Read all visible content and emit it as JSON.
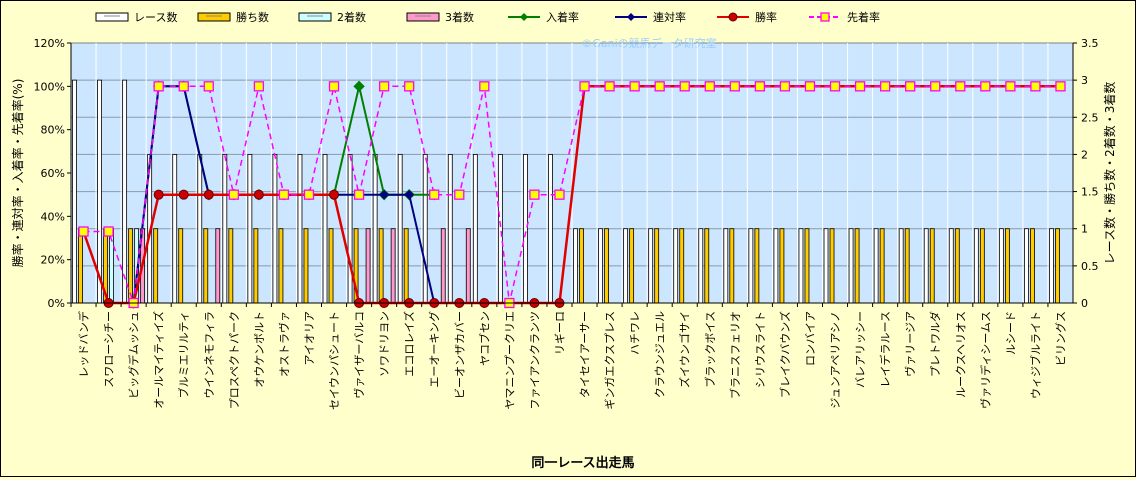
{
  "chart_data": {
    "type": "bar",
    "watermark": "©Ganiの競馬データ研究室",
    "xlabel": "同一レース出走馬",
    "ylabel_left": "勝率・連対率・入着率・先着率(%)",
    "ylabel_right": "レース数・勝ち数・2着数・3着数",
    "ylim_left": [
      0,
      120
    ],
    "ylim_right": [
      0,
      3.5
    ],
    "yticks_left": [
      "0%",
      "20%",
      "40%",
      "60%",
      "80%",
      "100%",
      "120%"
    ],
    "yticks_right": [
      "0",
      "0.5",
      "1",
      "1.5",
      "2",
      "2.5",
      "3",
      "3.5"
    ],
    "grid": true,
    "legend_position": "top",
    "categories": [
      "レッドバンデ",
      "スワローシチー",
      "ビッグデムッシュ",
      "オールマイティイズ",
      "ブルミエリルティ",
      "ウインネモフィラ",
      "プロスペクトパーク",
      "オウケンボルト",
      "オストラヴァ",
      "アイオリア",
      "セイウンパシュート",
      "ヴァイザーバルコ",
      "ソワドリヨン",
      "エコロレイズ",
      "エーオーキング",
      "ビーオンザカバー",
      "ヤコブセン",
      "ヤマニンプークリエ",
      "ファイアンクランツ",
      "リギーロ",
      "タイセイアーサー",
      "ギンガエクスプレス",
      "ハチワレ",
      "クラウンジュエル",
      "ズイウンゴサイ",
      "ブラックボイス",
      "ブラニスフェリオ",
      "シリウスライト",
      "ブレイクバウンズ",
      "ロンバイア",
      "ジュンアペリアシノ",
      "バレアリッシー",
      "レイデラルース",
      "ヴァリージア",
      "プレトワルダ",
      "ルークスヘリオス",
      "ヴァリディシームス",
      "ルシード",
      "ウィジブルライト",
      "ビリングス"
    ],
    "series": [
      {
        "name": "レース数",
        "axis": "right",
        "kind": "bar",
        "color": "#ffffff",
        "values": [
          3,
          3,
          3,
          2,
          2,
          2,
          2,
          2,
          2,
          2,
          2,
          2,
          2,
          2,
          2,
          2,
          2,
          2,
          2,
          2,
          1,
          1,
          1,
          1,
          1,
          1,
          1,
          1,
          1,
          1,
          1,
          1,
          1,
          1,
          1,
          1,
          1,
          1,
          1,
          1
        ]
      },
      {
        "name": "勝ち数",
        "axis": "right",
        "kind": "bar",
        "color": "#ffcc00",
        "values": [
          1,
          1,
          1,
          1,
          1,
          1,
          1,
          1,
          1,
          1,
          1,
          1,
          1,
          1,
          0,
          0,
          0,
          0,
          0,
          0,
          1,
          1,
          1,
          1,
          1,
          1,
          1,
          1,
          1,
          1,
          1,
          1,
          1,
          1,
          1,
          1,
          1,
          1,
          1,
          1
        ]
      },
      {
        "name": "2着数",
        "axis": "right",
        "kind": "bar",
        "color": "#ccffff",
        "values": [
          0,
          1,
          1,
          0,
          0,
          0,
          0,
          0,
          0,
          0,
          0,
          0,
          0,
          0,
          0,
          0,
          0,
          0,
          0,
          0,
          0,
          0,
          0,
          0,
          0,
          0,
          0,
          0,
          0,
          0,
          0,
          0,
          0,
          0,
          0,
          0,
          0,
          0,
          0,
          0
        ]
      },
      {
        "name": "3着数",
        "axis": "right",
        "kind": "bar",
        "color": "#ff99cc",
        "values": [
          0,
          0,
          1,
          0,
          0,
          1,
          0,
          0,
          0,
          0,
          0,
          1,
          1,
          0,
          1,
          1,
          0,
          0,
          0,
          0,
          0,
          0,
          0,
          0,
          0,
          0,
          0,
          0,
          0,
          0,
          0,
          0,
          0,
          0,
          0,
          0,
          0,
          0,
          0,
          0
        ]
      },
      {
        "name": "入着率",
        "axis": "left",
        "kind": "line",
        "color": "#008000",
        "values": [
          null,
          null,
          0,
          100,
          100,
          50,
          50,
          50,
          50,
          50,
          50,
          100,
          50,
          50,
          50,
          null,
          null,
          null,
          null,
          null,
          null,
          null,
          null,
          null,
          null,
          null,
          null,
          null,
          null,
          null,
          null,
          null,
          null,
          null,
          null,
          null,
          null,
          null,
          null,
          null
        ]
      },
      {
        "name": "連対率",
        "axis": "left",
        "kind": "line",
        "color": "#000080",
        "values": [
          null,
          null,
          0,
          100,
          100,
          50,
          50,
          50,
          50,
          50,
          50,
          50,
          50,
          50,
          0,
          null,
          null,
          null,
          null,
          null,
          null,
          null,
          null,
          null,
          null,
          null,
          null,
          null,
          null,
          null,
          null,
          null,
          null,
          null,
          null,
          null,
          null,
          null,
          null,
          null
        ]
      },
      {
        "name": "勝率",
        "axis": "left",
        "kind": "line",
        "color": "#e00000",
        "values": [
          33,
          0,
          0,
          50,
          50,
          50,
          50,
          50,
          50,
          50,
          50,
          0,
          0,
          0,
          0,
          0,
          0,
          0,
          0,
          0,
          100,
          100,
          100,
          100,
          100,
          100,
          100,
          100,
          100,
          100,
          100,
          100,
          100,
          100,
          100,
          100,
          100,
          100,
          100,
          100
        ]
      },
      {
        "name": "先着率",
        "axis": "left",
        "kind": "dashed",
        "color": "#ff00ff",
        "values": [
          33,
          33,
          0,
          100,
          100,
          100,
          50,
          100,
          50,
          50,
          100,
          50,
          100,
          100,
          50,
          50,
          100,
          0,
          50,
          50,
          100,
          100,
          100,
          100,
          100,
          100,
          100,
          100,
          100,
          100,
          100,
          100,
          100,
          100,
          100,
          100,
          100,
          100,
          100,
          100
        ]
      }
    ]
  }
}
